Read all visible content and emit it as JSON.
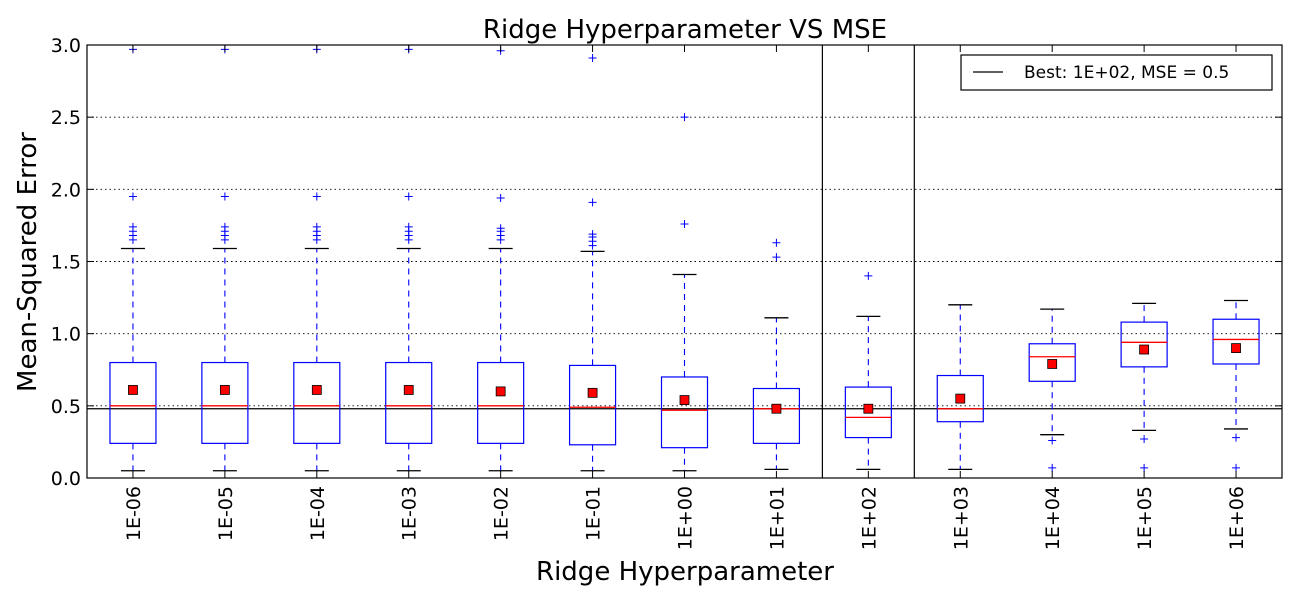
{
  "chart_data": {
    "type": "box",
    "title": "Ridge Hyperparameter VS MSE",
    "xlabel": "Ridge Hyperparameter",
    "ylabel": "Mean-Squared Error",
    "ylim": [
      0.0,
      3.0
    ],
    "yticks": [
      "0.0",
      "0.5",
      "1.0",
      "1.5",
      "2.0",
      "2.5",
      "3.0"
    ],
    "grid": "horizontal dotted",
    "legend": {
      "label": "Best: 1E+02, MSE = 0.5",
      "placement": "top-right"
    },
    "best_line": 0.48,
    "best_category": "1E+02",
    "colors": {
      "box": "#0000ff",
      "median": "#ff0000",
      "mean": "#ff0000",
      "best": "#000000"
    },
    "categories": [
      "1E-06",
      "1E-05",
      "1E-04",
      "1E-03",
      "1E-02",
      "1E-01",
      "1E+00",
      "1E+01",
      "1E+02",
      "1E+03",
      "1E+04",
      "1E+05",
      "1E+06"
    ],
    "boxes": [
      {
        "q1": 0.24,
        "median": 0.5,
        "q3": 0.8,
        "whisker_low": 0.05,
        "whisker_high": 1.59,
        "mean": 0.61,
        "fliers": [
          1.65,
          1.68,
          1.71,
          1.74,
          1.95,
          2.97
        ]
      },
      {
        "q1": 0.24,
        "median": 0.5,
        "q3": 0.8,
        "whisker_low": 0.05,
        "whisker_high": 1.59,
        "mean": 0.61,
        "fliers": [
          1.65,
          1.68,
          1.71,
          1.74,
          1.95,
          2.97
        ]
      },
      {
        "q1": 0.24,
        "median": 0.5,
        "q3": 0.8,
        "whisker_low": 0.05,
        "whisker_high": 1.59,
        "mean": 0.61,
        "fliers": [
          1.65,
          1.68,
          1.71,
          1.74,
          1.95,
          2.97
        ]
      },
      {
        "q1": 0.24,
        "median": 0.5,
        "q3": 0.8,
        "whisker_low": 0.05,
        "whisker_high": 1.59,
        "mean": 0.61,
        "fliers": [
          1.65,
          1.68,
          1.71,
          1.74,
          1.95,
          2.97
        ]
      },
      {
        "q1": 0.24,
        "median": 0.5,
        "q3": 0.8,
        "whisker_low": 0.05,
        "whisker_high": 1.59,
        "mean": 0.6,
        "fliers": [
          1.65,
          1.68,
          1.71,
          1.73,
          1.94,
          2.96
        ]
      },
      {
        "q1": 0.23,
        "median": 0.49,
        "q3": 0.78,
        "whisker_low": 0.05,
        "whisker_high": 1.57,
        "mean": 0.59,
        "fliers": [
          1.61,
          1.64,
          1.67,
          1.69,
          1.91,
          2.91
        ]
      },
      {
        "q1": 0.21,
        "median": 0.47,
        "q3": 0.7,
        "whisker_low": 0.05,
        "whisker_high": 1.41,
        "mean": 0.54,
        "fliers": [
          1.76,
          2.5
        ]
      },
      {
        "q1": 0.24,
        "median": 0.48,
        "q3": 0.62,
        "whisker_low": 0.06,
        "whisker_high": 1.11,
        "mean": 0.48,
        "fliers": [
          1.53,
          1.63
        ]
      },
      {
        "q1": 0.28,
        "median": 0.42,
        "q3": 0.63,
        "whisker_low": 0.06,
        "whisker_high": 1.12,
        "mean": 0.48,
        "fliers": [
          1.4
        ]
      },
      {
        "q1": 0.39,
        "median": 0.48,
        "q3": 0.71,
        "whisker_low": 0.06,
        "whisker_high": 1.2,
        "mean": 0.55,
        "fliers": []
      },
      {
        "q1": 0.67,
        "median": 0.84,
        "q3": 0.93,
        "whisker_low": 0.3,
        "whisker_high": 1.17,
        "mean": 0.79,
        "fliers": [
          0.26,
          0.07
        ]
      },
      {
        "q1": 0.77,
        "median": 0.94,
        "q3": 1.08,
        "whisker_low": 0.33,
        "whisker_high": 1.21,
        "mean": 0.89,
        "fliers": [
          0.27,
          0.07
        ]
      },
      {
        "q1": 0.79,
        "median": 0.96,
        "q3": 1.1,
        "whisker_low": 0.34,
        "whisker_high": 1.23,
        "mean": 0.9,
        "fliers": [
          0.28,
          0.07
        ]
      }
    ]
  }
}
